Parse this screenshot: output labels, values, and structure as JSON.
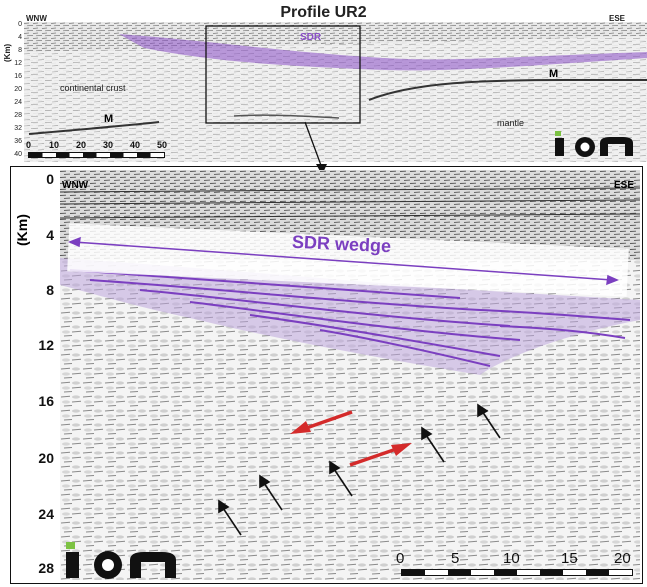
{
  "title": "Profile UR2",
  "overview": {
    "left_label": "WNW",
    "right_label": "ESE",
    "y_axis_label": "(Km)",
    "y_ticks": [
      "0",
      "4",
      "8",
      "12",
      "16",
      "20",
      "24",
      "28",
      "32",
      "36",
      "40"
    ],
    "labels": {
      "sdr": "SDR",
      "continental_crust": "continental crust",
      "mantle": "mantle",
      "moho_left": "M",
      "moho_right": "M"
    },
    "scale_ticks": [
      "0",
      "10",
      "20",
      "30",
      "40",
      "50"
    ],
    "logo": "ION",
    "colors": {
      "sdr": "#8a4fc7",
      "logo_green": "#7cc242"
    }
  },
  "detail": {
    "left_label": "WNW",
    "right_label": "ESE",
    "y_axis_label": "(Km)",
    "y_ticks": [
      "0",
      "4",
      "8",
      "12",
      "16",
      "20",
      "24",
      "28"
    ],
    "sdr_label": "SDR wedge",
    "scale_ticks": [
      "0",
      "5",
      "10",
      "15",
      "20"
    ],
    "logo": "ION",
    "colors": {
      "sdr": "#7b3fc0",
      "arrow_red": "#d42a2a",
      "logo_green": "#7cc242"
    }
  }
}
